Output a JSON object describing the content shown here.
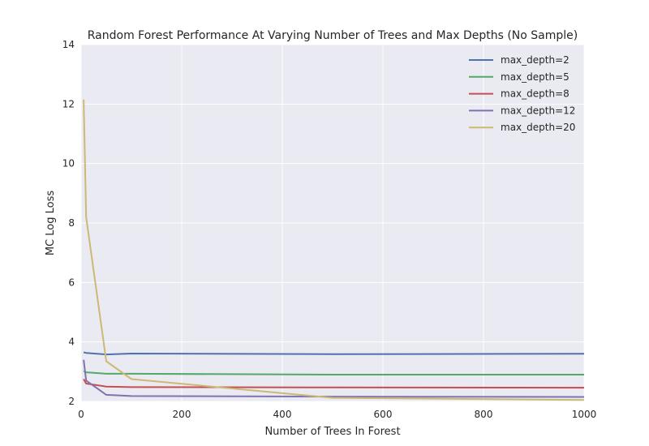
{
  "chart_data": {
    "type": "line",
    "title": "Random Forest Performance At Varying Number of Trees and Max Depths (No Sample)",
    "xlabel": "Number of Trees In Forest",
    "ylabel": "MC Log Loss",
    "xlim": [
      0,
      1000
    ],
    "ylim": [
      2,
      14
    ],
    "xticks": [
      "0",
      "200",
      "400",
      "600",
      "800",
      "1000"
    ],
    "yticks": [
      "2",
      "4",
      "6",
      "8",
      "10",
      "12",
      "14"
    ],
    "grid": true,
    "legend_position": "top-right",
    "series": [
      {
        "name": "max_depth=2",
        "color": "#4c72b0",
        "x": [
          5,
          10,
          50,
          100,
          500,
          1000
        ],
        "y": [
          3.65,
          3.63,
          3.58,
          3.61,
          3.59,
          3.6
        ]
      },
      {
        "name": "max_depth=5",
        "color": "#55a868",
        "x": [
          5,
          10,
          50,
          100,
          500,
          1000
        ],
        "y": [
          3.02,
          2.98,
          2.93,
          2.93,
          2.9,
          2.9
        ]
      },
      {
        "name": "max_depth=8",
        "color": "#c44e52",
        "x": [
          5,
          10,
          50,
          100,
          500,
          1000
        ],
        "y": [
          2.75,
          2.6,
          2.5,
          2.48,
          2.47,
          2.46
        ]
      },
      {
        "name": "max_depth=12",
        "color": "#8172b2",
        "x": [
          5,
          10,
          50,
          100,
          500,
          1000
        ],
        "y": [
          3.4,
          2.7,
          2.22,
          2.18,
          2.16,
          2.15
        ]
      },
      {
        "name": "max_depth=20",
        "color": "#ccb974",
        "x": [
          5,
          10,
          50,
          100,
          500,
          1000
        ],
        "y": [
          12.15,
          8.2,
          3.35,
          2.75,
          2.12,
          2.05
        ]
      }
    ]
  }
}
